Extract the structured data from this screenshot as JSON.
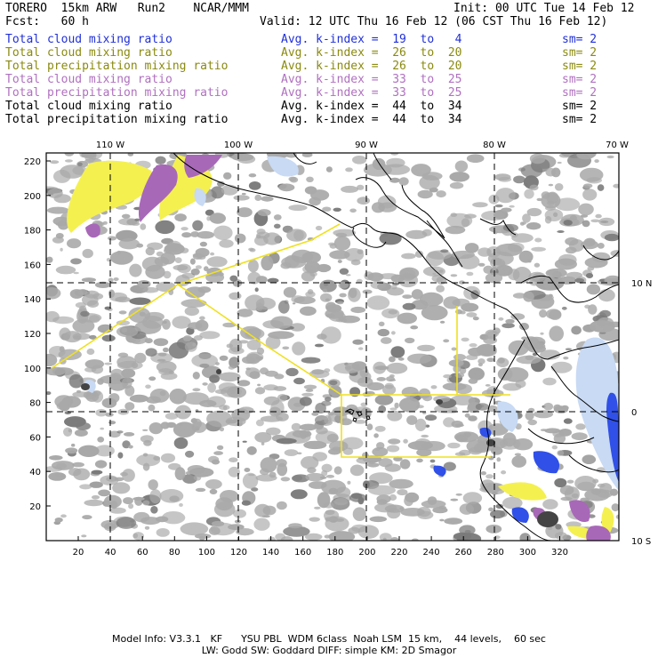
{
  "header": {
    "line1_left": "TORERO  15km ARW   Run2    NCAR/MMM",
    "line1_right": "Init: 00 UTC Tue 14 Feb 12",
    "line2_left": "Fcst:   60 h",
    "line2_right": "Valid: 12 UTC Thu 16 Feb 12 (06 CST Thu 16 Feb 12)"
  },
  "legend": [
    {
      "field": "Total cloud mixing ratio",
      "avg": "Avg. k-index =  19  to   4",
      "sm": "sm= 2",
      "color": "#2030d8"
    },
    {
      "field": "Total cloud mixing ratio",
      "avg": "Avg. k-index =  26  to  20",
      "sm": "sm= 2",
      "color": "#8a8a10"
    },
    {
      "field": "Total precipitation mixing ratio",
      "avg": "Avg. k-index =  26  to  20",
      "sm": "sm= 2",
      "color": "#8a8a10"
    },
    {
      "field": "Total cloud mixing ratio",
      "avg": "Avg. k-index =  33  to  25",
      "sm": "sm= 2",
      "color": "#b070c0"
    },
    {
      "field": "Total precipitation mixing ratio",
      "avg": "Avg. k-index =  33  to  25",
      "sm": "sm= 2",
      "color": "#b070c0"
    },
    {
      "field": "Total cloud mixing ratio",
      "avg": "Avg. k-index =  44  to  34",
      "sm": "sm= 2",
      "color": "#000000"
    },
    {
      "field": "Total precipitation mixing ratio",
      "avg": "Avg. k-index =  44  to  34",
      "sm": "sm= 2",
      "color": "#000000"
    }
  ],
  "map": {
    "top_lon_labels": [
      "110 W",
      "100 W",
      "90 W",
      "80 W",
      "70 W"
    ],
    "right_lat_labels": [
      "10 N",
      "0",
      "10 S"
    ],
    "y_grid_labels": [
      "220",
      "200",
      "180",
      "160",
      "140",
      "120",
      "100",
      "80",
      "60",
      "40",
      "20"
    ],
    "x_grid_labels": [
      "20",
      "40",
      "60",
      "80",
      "100",
      "120",
      "140",
      "160",
      "180",
      "200",
      "220",
      "240",
      "260",
      "280",
      "300",
      "320"
    ],
    "colors": {
      "cloud_gray": "#a9a9a9",
      "cloud_gray_dark": "#7a7a7a",
      "yellow": "#f4f050",
      "purple": "#a868b8",
      "blue": "#3050e8",
      "light_blue": "#c8daf4",
      "coast": "#000000",
      "flight_track": "#f0e020"
    }
  },
  "footer": {
    "line1": "Model Info: V3.3.1   KF      YSU PBL  WDM 6class  Noah LSM  15 km,    44 levels,    60 sec",
    "line2": "LW: Godd SW: Goddard DIFF: simple KM: 2D Smagor"
  }
}
